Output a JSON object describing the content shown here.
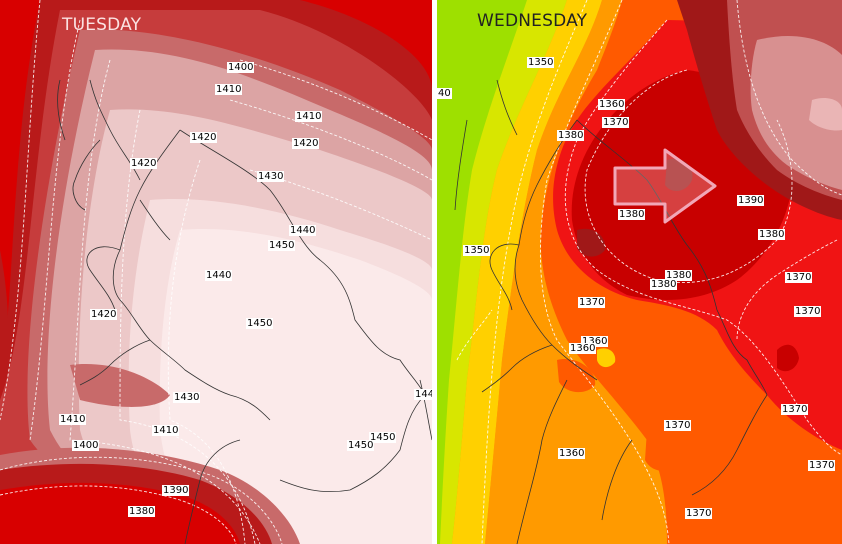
{
  "panels": [
    {
      "title": "TUESDAY",
      "labels": [
        "1400",
        "1410",
        "1410",
        "1420",
        "1420",
        "1420",
        "1430",
        "1440",
        "1450",
        "1440",
        "1450",
        "1420",
        "1430",
        "1410",
        "1410",
        "1400",
        "1450",
        "1450",
        "1390",
        "1380",
        "144"
      ]
    },
    {
      "title": "WEDNESDAY",
      "labels": [
        "1350",
        "40",
        "1360",
        "1370",
        "1380",
        "1390",
        "1380",
        "1380",
        "1380",
        "1380",
        "1370",
        "1370",
        "1370",
        "1360",
        "1360",
        "1370",
        "1370",
        "1360",
        "1370",
        "1370",
        "1350"
      ]
    }
  ],
  "arrow": {
    "icon": "arrow-right-icon",
    "fill": "#ffffff",
    "stroke": "#f2a7b7"
  },
  "palette": {
    "tuesday": [
      "#d80000",
      "#b81a1a",
      "#c63c3c",
      "#c86a6a",
      "#dca4a4",
      "#ecc8c8",
      "#f6dede",
      "#fbeaea"
    ],
    "wednesday": [
      "#9ee000",
      "#d8e600",
      "#ffd000",
      "#ff9a00",
      "#ff5a00",
      "#f01414",
      "#c80000",
      "#a01818",
      "#c05050",
      "#d89090"
    ]
  }
}
